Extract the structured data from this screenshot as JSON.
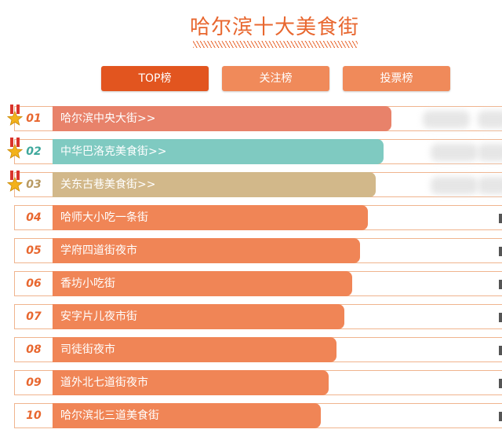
{
  "title": "哈尔滨十大美食街",
  "tabs": [
    {
      "label": "TOP榜",
      "active": true
    },
    {
      "label": "关注榜",
      "active": false
    },
    {
      "label": "投票榜",
      "active": false
    }
  ],
  "colors": {
    "accent": "#e8672f",
    "tab_active": "#e2551f",
    "tab_inactive": "#f08a5a",
    "bar_default": "#f08556",
    "bar_1": "#e8826a",
    "bar_2": "#7fcac1",
    "bar_3": "#d2b88a",
    "rank_default": "#e8672f",
    "rank_2": "#3fa89c",
    "rank_3": "#b89a62",
    "row_border": "#f0b48e"
  },
  "items": [
    {
      "rank": "01",
      "name": "哈尔滨中央大街>>",
      "score": 100,
      "medal": true
    },
    {
      "rank": "02",
      "name": "中华巴洛克美食街>>",
      "score": 98,
      "medal": true
    },
    {
      "rank": "03",
      "name": "关东古巷美食街>>",
      "score": 96,
      "medal": true
    },
    {
      "rank": "04",
      "name": "哈师大小吃一条街",
      "score": 94,
      "medal": false
    },
    {
      "rank": "05",
      "name": "学府四道街夜市",
      "score": 92,
      "medal": false
    },
    {
      "rank": "06",
      "name": "香坊小吃街",
      "score": 90,
      "medal": false
    },
    {
      "rank": "07",
      "name": "安字片儿夜市街",
      "score": 88,
      "medal": false
    },
    {
      "rank": "08",
      "name": "司徒街夜市",
      "score": 86,
      "medal": false
    },
    {
      "rank": "09",
      "name": "道外北七道街夜市",
      "score": 84,
      "medal": false
    },
    {
      "rank": "10",
      "name": "哈尔滨北三道美食街",
      "score": 82,
      "medal": false
    }
  ]
}
